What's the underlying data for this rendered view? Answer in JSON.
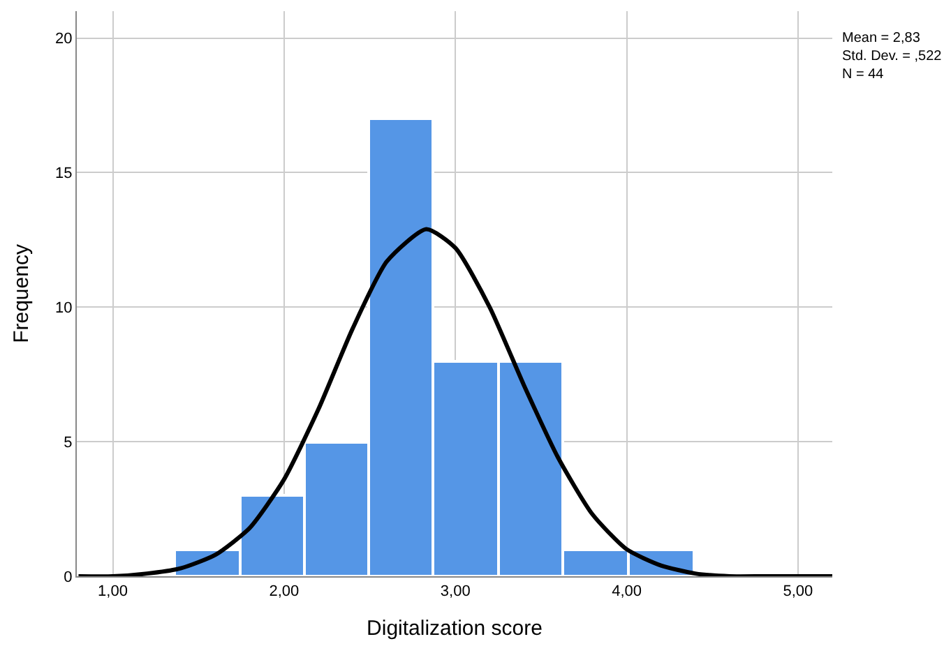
{
  "chart_data": {
    "type": "histogram",
    "xlabel": "Digitalization score",
    "ylabel": "Frequency",
    "bins": [
      1.36,
      1.74,
      2.12,
      2.49,
      2.87,
      3.25,
      3.63,
      4.01,
      4.39
    ],
    "values": [
      1,
      3,
      5,
      17,
      8,
      8,
      1,
      1
    ],
    "color": "#5596e6",
    "series": [
      {
        "type": "line",
        "color": "#000000",
        "x": [
          0.8,
          1.0,
          1.2,
          1.4,
          1.6,
          1.8,
          2.0,
          2.2,
          2.4,
          2.6,
          2.83,
          3.0,
          3.2,
          3.4,
          3.6,
          3.8,
          4.0,
          4.2,
          4.4,
          4.6,
          4.8,
          5.0,
          5.2
        ],
        "values": [
          0.0,
          0.0,
          0.1,
          0.3,
          0.8,
          1.8,
          3.6,
          6.2,
          9.2,
          11.7,
          12.9,
          12.2,
          10.0,
          7.1,
          4.4,
          2.3,
          1.0,
          0.4,
          0.1,
          0.0,
          0.0,
          0.0,
          0.0
        ]
      }
    ],
    "xlim": [
      0.79,
      5.2
    ],
    "xticks": [
      {
        "value": 1,
        "label": "1,00"
      },
      {
        "value": 2,
        "label": "2,00"
      },
      {
        "value": 3,
        "label": "3,00"
      },
      {
        "value": 4,
        "label": "4,00"
      },
      {
        "value": 5,
        "label": "5,00"
      }
    ],
    "ylim": [
      0,
      21
    ],
    "yticks": [
      0,
      5,
      10,
      15,
      20
    ],
    "grid": true,
    "annotations": [
      "Mean = 2,83",
      "Std. Dev. = ,522",
      "N = 44"
    ]
  }
}
